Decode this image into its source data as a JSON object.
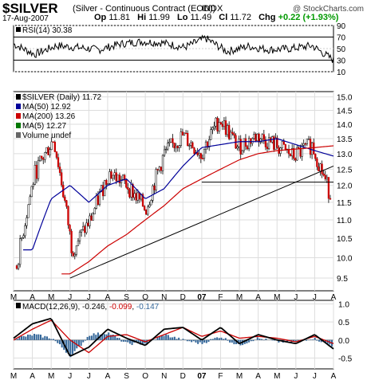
{
  "header": {
    "ticker": "$SILVER",
    "contract": "(Silver - Continuous Contract (EOD))",
    "exchange": "INDX",
    "watermark": "@ StockCharts.com",
    "date": "17-Aug-2007",
    "quote": [
      {
        "label": "Op",
        "value": "11.81"
      },
      {
        "label": "Hi",
        "value": "11.99"
      },
      {
        "label": "Lo",
        "value": "11.49"
      },
      {
        "label": "Cl",
        "value": "11.72"
      },
      {
        "label": "Chg",
        "value": "+0.22 (+1.93%)"
      }
    ]
  },
  "colors": {
    "ma50": "#000099",
    "ma200": "#cc0000",
    "ma5": "#007700",
    "up": "#009900",
    "macd_line": "#000000",
    "macd_signal": "#cc0000",
    "hist": "#336699",
    "rsi_fill": "#5f8f5f"
  },
  "chart_data": [
    {
      "type": "line",
      "panel": "rsi",
      "legend": [
        "RSI(14) 30.38"
      ],
      "ylim": [
        10,
        90
      ],
      "y_ticks": [
        "90",
        "70",
        "50",
        "30",
        "10"
      ],
      "ref_lines": [
        70,
        30
      ],
      "x": [
        "May 06",
        "Jun 06",
        "Jul 06",
        "Aug 06",
        "Sep 06",
        "Oct 06",
        "Nov 06",
        "Dec 06",
        "Jan 07",
        "Feb 07",
        "Mar 07",
        "Apr 07",
        "May 07",
        "Jun 07",
        "Jul 07",
        "Aug 07"
      ],
      "series": [
        {
          "values": [
            58,
            40,
            55,
            52,
            48,
            58,
            62,
            60,
            52,
            68,
            45,
            54,
            48,
            50,
            55,
            30
          ]
        }
      ]
    },
    {
      "type": "candlestick",
      "panel": "price",
      "legend": [
        "$SILVER (Daily) 11.72",
        "MA(50) 12.92",
        "MA(200) 13.26",
        "MA(5) 12.27",
        "Volume undef"
      ],
      "ylim": [
        9.2,
        15.2
      ],
      "scale": "log",
      "y_ticks": [
        9.5,
        10.0,
        10.5,
        11.0,
        11.5,
        12.0,
        12.5,
        13.0,
        13.5,
        14.0,
        14.5,
        15.0
      ],
      "x_labels": [
        "M",
        "A",
        "M",
        "J",
        "J",
        "A",
        "S",
        "O",
        "N",
        "D",
        "07",
        "F",
        "M",
        "A",
        "M",
        "J",
        "J",
        "A"
      ],
      "x": [
        "Mar 06",
        "Apr 06",
        "May 06",
        "Jun 06",
        "Jul 06",
        "Aug 06",
        "Sep 06",
        "Oct 06",
        "Nov 06",
        "Dec 06",
        "Jan 07",
        "Feb 07",
        "Mar 07",
        "Apr 07",
        "May 07",
        "Jun 07",
        "Jul 07",
        "Aug 07"
      ],
      "close": [
        9.8,
        12.4,
        13.5,
        10.2,
        11.0,
        12.4,
        12.0,
        11.3,
        13.0,
        13.6,
        13.0,
        14.2,
        13.2,
        13.6,
        13.3,
        12.9,
        13.3,
        11.72
      ],
      "series": [
        {
          "name": "MA(50)",
          "values": [
            null,
            10.2,
            11.6,
            12.0,
            11.5,
            12.0,
            12.2,
            11.6,
            11.9,
            12.6,
            13.2,
            13.3,
            13.4,
            13.4,
            13.5,
            13.3,
            13.1,
            12.92
          ]
        },
        {
          "name": "MA(200)",
          "values": [
            null,
            null,
            null,
            9.6,
            9.9,
            10.3,
            10.6,
            11.0,
            11.4,
            11.9,
            12.2,
            12.5,
            12.8,
            13.0,
            13.1,
            13.15,
            13.2,
            13.26
          ]
        }
      ],
      "annotations": [
        {
          "type": "trendline",
          "from": [
            "Jun 06",
            9.5
          ],
          "to": [
            "Aug 07",
            12.6
          ]
        },
        {
          "type": "horizontal",
          "from": [
            "Jan 07",
            12.1
          ],
          "to": [
            "Aug 07",
            12.1
          ]
        }
      ]
    },
    {
      "type": "line",
      "panel": "macd",
      "legend": [
        "MACD(12,26,9)",
        "-0.246",
        "-0.099",
        "-0.147"
      ],
      "ylim": [
        -0.8,
        1.1
      ],
      "y_ticks": [
        1.0,
        0.5,
        0.0,
        -0.5
      ],
      "x_labels": [
        "M",
        "A",
        "M",
        "J",
        "J",
        "A",
        "S",
        "O",
        "N",
        "D",
        "07",
        "F",
        "M",
        "A",
        "M",
        "J",
        "J",
        "A"
      ],
      "x": [
        "Mar 06",
        "Apr 06",
        "May 06",
        "Jun 06",
        "Jul 06",
        "Aug 06",
        "Sep 06",
        "Oct 06",
        "Nov 06",
        "Dec 06",
        "Jan 07",
        "Feb 07",
        "Mar 07",
        "Apr 07",
        "May 07",
        "Jun 07",
        "Jul 07",
        "Aug 07"
      ],
      "series": [
        {
          "name": "MACD",
          "values": [
            0.05,
            0.45,
            0.6,
            -0.45,
            -0.2,
            0.3,
            0.05,
            -0.15,
            0.3,
            0.35,
            0.0,
            0.35,
            -0.1,
            0.15,
            0.0,
            -0.1,
            0.15,
            -0.246
          ]
        },
        {
          "name": "Signal",
          "values": [
            0.0,
            0.3,
            0.55,
            0.0,
            -0.35,
            0.1,
            0.15,
            -0.05,
            0.15,
            0.35,
            0.1,
            0.25,
            0.05,
            0.1,
            0.05,
            -0.05,
            0.1,
            -0.099
          ]
        },
        {
          "name": "Histogram",
          "values": [
            0.05,
            0.15,
            0.05,
            -0.45,
            0.15,
            0.2,
            -0.1,
            -0.1,
            0.15,
            0.0,
            -0.1,
            0.1,
            -0.15,
            0.05,
            -0.05,
            -0.05,
            0.05,
            -0.147
          ]
        }
      ]
    }
  ]
}
